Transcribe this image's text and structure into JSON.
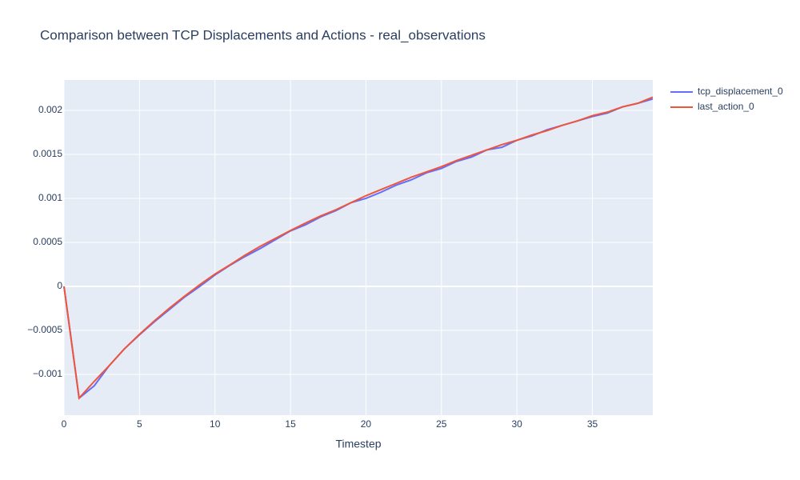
{
  "chart_data": {
    "type": "line",
    "title": "Comparison between TCP Displacements and Actions - real_observations",
    "x_label": "Timestep",
    "x": [
      0,
      1,
      2,
      3,
      4,
      5,
      6,
      7,
      8,
      9,
      10,
      11,
      12,
      13,
      14,
      15,
      16,
      17,
      18,
      19,
      20,
      21,
      22,
      23,
      24,
      25,
      26,
      27,
      28,
      29,
      30,
      31,
      32,
      33,
      34,
      35,
      36,
      37,
      38,
      39
    ],
    "series": [
      {
        "name": "tcp_displacement_0",
        "color": "#636efa",
        "values": [
          0,
          -0.00127,
          -0.00113,
          -0.0009,
          -0.00071,
          -0.00055,
          -0.0004,
          -0.00026,
          -0.00012,
          0.0,
          0.00013,
          0.00024,
          0.00034,
          0.00043,
          0.00053,
          0.00063,
          0.0007,
          0.00079,
          0.00086,
          0.00095,
          0.001,
          0.00107,
          0.00115,
          0.00121,
          0.00129,
          0.00134,
          0.00142,
          0.00147,
          0.00155,
          0.00158,
          0.00166,
          0.00171,
          0.00178,
          0.00183,
          0.00188,
          0.00193,
          0.00197,
          0.00204,
          0.00208,
          0.00213
        ]
      },
      {
        "name": "last_action_0",
        "color": "#ef553b",
        "values": [
          0,
          -0.00127,
          -0.00108,
          -0.0009,
          -0.00071,
          -0.000545,
          -0.00039,
          -0.000245,
          -0.00011,
          2e-05,
          0.00014,
          0.000245,
          0.000355,
          0.000455,
          0.000545,
          0.000635,
          0.00072,
          0.0008,
          0.00087,
          0.00095,
          0.00103,
          0.0011,
          0.00117,
          0.00124,
          0.0013,
          0.00136,
          0.00143,
          0.00149,
          0.00155,
          0.00161,
          0.00166,
          0.00172,
          0.00177,
          0.00183,
          0.00188,
          0.00194,
          0.00198,
          0.00204,
          0.00208,
          0.00215
        ]
      }
    ],
    "xlim": [
      0,
      39
    ],
    "xticks": [
      0,
      5,
      10,
      15,
      20,
      25,
      30,
      35
    ],
    "ylim": [
      -0.001464,
      0.002345
    ],
    "yticks": [
      {
        "value": -0.001,
        "label": "−0.001"
      },
      {
        "value": -0.0005,
        "label": "−0.0005"
      },
      0,
      0.0005,
      0.001,
      0.0015,
      0.002
    ],
    "grid": true,
    "legend": "top-right"
  }
}
